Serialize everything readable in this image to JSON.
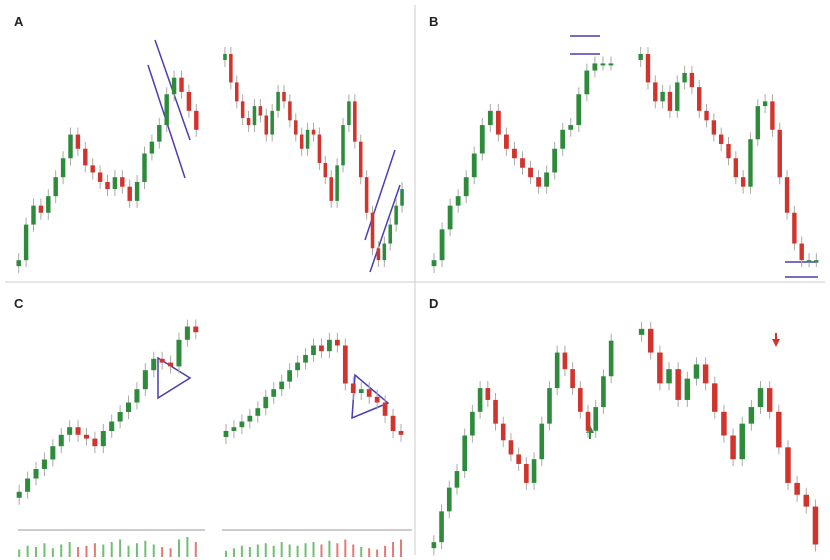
{
  "panels": [
    {
      "label": "A",
      "segments": [
        {
          "values": [
            5,
            20,
            28,
            25,
            32,
            40,
            48,
            58,
            52,
            45,
            42,
            38,
            35,
            40,
            36,
            30,
            38,
            50,
            55,
            62,
            75,
            82,
            76,
            68,
            60
          ]
        },
        {
          "values": [
            92,
            80,
            72,
            65,
            62,
            70,
            66,
            58,
            68,
            76,
            72,
            64,
            58,
            52,
            60,
            58,
            46,
            40,
            30,
            45,
            62,
            72,
            55,
            40,
            25,
            10,
            5,
            12,
            20,
            28,
            35
          ]
        }
      ]
    },
    {
      "label": "B",
      "segments": [
        {
          "values": [
            5,
            18,
            28,
            32,
            40,
            50,
            62,
            68,
            58,
            52,
            48,
            44,
            40,
            36,
            42,
            52,
            60,
            62,
            75,
            85,
            88,
            88,
            88
          ]
        },
        {
          "values": [
            92,
            80,
            72,
            76,
            68,
            80,
            84,
            78,
            68,
            64,
            58,
            54,
            48,
            40,
            36,
            56,
            70,
            72,
            60,
            40,
            25,
            12,
            5,
            5,
            5
          ]
        }
      ]
    },
    {
      "label": "C",
      "segments": [
        {
          "values": [
            8,
            15,
            20,
            25,
            32,
            38,
            42,
            38,
            36,
            32,
            40,
            45,
            50,
            55,
            62,
            72,
            78,
            76,
            74,
            88,
            95,
            92
          ],
          "volume": [
            30,
            45,
            40,
            55,
            35,
            50,
            60,
            40,
            45,
            55,
            50,
            60,
            70,
            45,
            55,
            65,
            50,
            40,
            35,
            70,
            80,
            60
          ]
        },
        {
          "values": [
            40,
            42,
            45,
            48,
            52,
            58,
            62,
            66,
            72,
            76,
            80,
            85,
            82,
            88,
            85,
            65,
            60,
            62,
            58,
            55,
            48,
            40,
            38
          ],
          "volume": [
            25,
            35,
            45,
            40,
            50,
            55,
            45,
            60,
            50,
            45,
            55,
            60,
            50,
            65,
            55,
            70,
            50,
            40,
            35,
            30,
            45,
            60,
            70
          ]
        }
      ]
    },
    {
      "label": "D",
      "segments": [
        {
          "values": [
            5,
            18,
            28,
            35,
            50,
            60,
            70,
            65,
            55,
            48,
            42,
            38,
            30,
            40,
            55,
            70,
            85,
            78,
            70,
            60,
            52,
            62,
            75,
            90
          ]
        },
        {
          "values": [
            95,
            85,
            72,
            78,
            65,
            74,
            80,
            72,
            60,
            50,
            40,
            55,
            62,
            70,
            60,
            45,
            30,
            25,
            20,
            4
          ]
        }
      ]
    }
  ]
}
